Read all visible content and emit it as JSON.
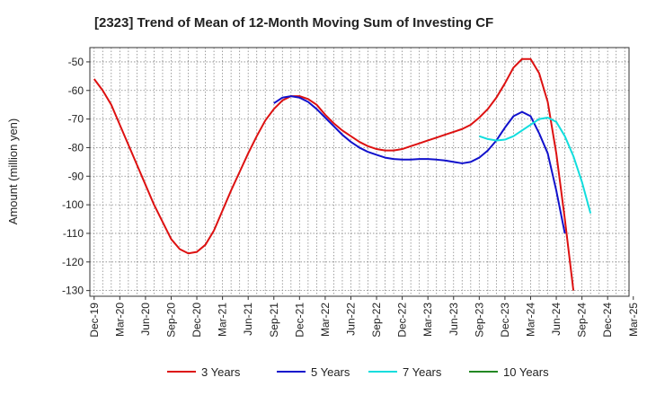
{
  "chart_data": {
    "type": "line",
    "title": "[2323]  Trend of Mean of 12-Month Moving Sum of Investing CF",
    "xlabel": "",
    "ylabel": "Amount (million yen)",
    "ylim": [
      -132,
      -45
    ],
    "yticks": [
      -50,
      -60,
      -70,
      -80,
      -90,
      -100,
      -110,
      -120,
      -130
    ],
    "x_start": "Dec-19",
    "x_months_total": 63,
    "xtick_labels": [
      "Dec-19",
      "Mar-20",
      "Jun-20",
      "Sep-20",
      "Dec-20",
      "Mar-21",
      "Jun-21",
      "Sep-21",
      "Dec-21",
      "Mar-22",
      "Jun-22",
      "Sep-22",
      "Dec-22",
      "Mar-23",
      "Jun-23",
      "Sep-23",
      "Dec-23",
      "Mar-24",
      "Jun-24",
      "Sep-24",
      "Dec-24",
      "Mar-25"
    ],
    "grid": true,
    "legend_position": "bottom",
    "series": [
      {
        "name": "3 Years",
        "color": "#dd1111",
        "start_index": 0,
        "values": [
          -56,
          -60,
          -65,
          -72,
          -79,
          -86,
          -93,
          -100,
          -106,
          -112,
          -115.5,
          -117,
          -116.5,
          -114,
          -109,
          -102,
          -95,
          -88.5,
          -82,
          -76,
          -70.5,
          -66.5,
          -63.5,
          -62,
          -62,
          -63,
          -65,
          -68.5,
          -71.5,
          -74,
          -76,
          -78,
          -79.5,
          -80.5,
          -81,
          -81,
          -80.5,
          -79.5,
          -78.5,
          -77.5,
          -76.5,
          -75.5,
          -74.5,
          -73.5,
          -72,
          -69.5,
          -66.5,
          -62.5,
          -57.5,
          -52,
          -49,
          -49,
          -54,
          -64,
          -82,
          -105,
          -130
        ]
      },
      {
        "name": "5 Years",
        "color": "#1111cc",
        "start_index": 21,
        "values": [
          -64.5,
          -62.5,
          -62,
          -62.5,
          -64,
          -66.5,
          -69.5,
          -72.5,
          -75.5,
          -78,
          -80,
          -81.5,
          -82.5,
          -83.5,
          -84,
          -84.2,
          -84.2,
          -84,
          -84,
          -84.2,
          -84.5,
          -85,
          -85.5,
          -85,
          -83.5,
          -81,
          -77.5,
          -73,
          -69,
          -67.5,
          -69,
          -75,
          -82,
          -95,
          -110
        ]
      },
      {
        "name": "7 Years",
        "color": "#11dddd",
        "start_index": 45,
        "values": [
          -76,
          -77,
          -77.5,
          -77.2,
          -76,
          -74,
          -72,
          -70,
          -69.5,
          -71,
          -76,
          -83,
          -92,
          -103
        ]
      },
      {
        "name": "10 Years",
        "color": "#228822",
        "start_index": 0,
        "values": []
      }
    ]
  }
}
